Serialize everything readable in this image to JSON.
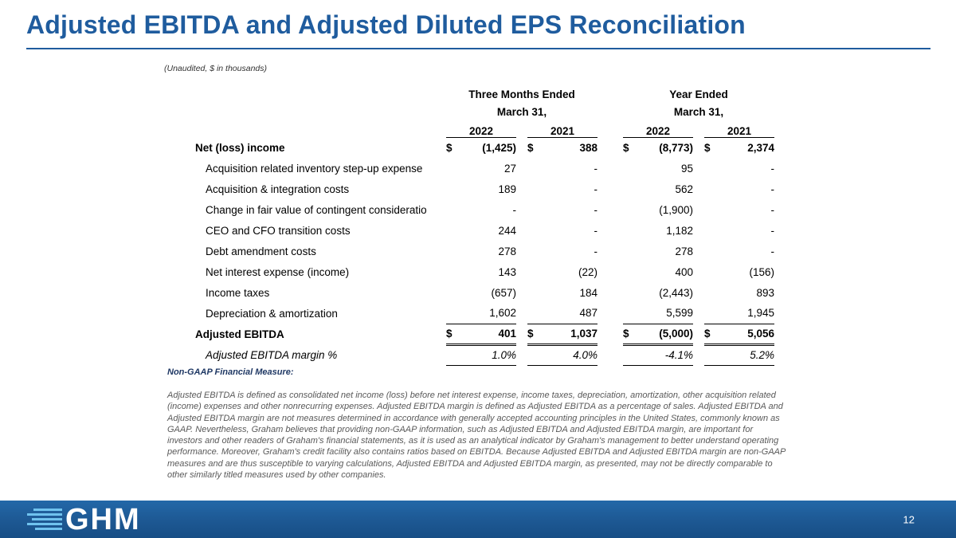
{
  "slide": {
    "title": "Adjusted EBITDA and Adjusted Diluted EPS Reconciliation",
    "subtitle": "(Unaudited, $ in thousands)",
    "page_number": "12",
    "logo_text": "GHM",
    "accent_color": "#1F5C9E",
    "footer_color": "#1D5893"
  },
  "table": {
    "currency": "$",
    "group_headers": [
      {
        "line1": "Three Months Ended",
        "line2": "March 31,"
      },
      {
        "line1": "Year Ended",
        "line2": "March 31,"
      }
    ],
    "year_headers": [
      "2022",
      "2021",
      "2022",
      "2021"
    ],
    "rows": [
      {
        "label": "Net (loss) income",
        "style": "lead",
        "has_currency": true,
        "values": [
          "(1,425)",
          "388",
          "(8,773)",
          "2,374"
        ]
      },
      {
        "label": "Acquisition related inventory step-up expense",
        "style": "item",
        "has_currency": false,
        "values": [
          "27",
          "-",
          "95",
          "-"
        ]
      },
      {
        "label": "Acquisition & integration costs",
        "style": "item",
        "has_currency": false,
        "values": [
          "189",
          "-",
          "562",
          "-"
        ]
      },
      {
        "label": "Change in fair value of contingent consideratio",
        "style": "item",
        "has_currency": false,
        "values": [
          "-",
          "-",
          "(1,900)",
          "-"
        ]
      },
      {
        "label": "CEO and CFO transition costs",
        "style": "item",
        "has_currency": false,
        "values": [
          "244",
          "-",
          "1,182",
          "-"
        ]
      },
      {
        "label": "Debt amendment costs",
        "style": "item",
        "has_currency": false,
        "values": [
          "278",
          "-",
          "278",
          "-"
        ]
      },
      {
        "label": "Net interest expense (income)",
        "style": "item",
        "has_currency": false,
        "values": [
          "143",
          "(22)",
          "400",
          "(156)"
        ]
      },
      {
        "label": "Income taxes",
        "style": "item",
        "has_currency": false,
        "values": [
          "(657)",
          "184",
          "(2,443)",
          "893"
        ]
      },
      {
        "label": "Depreciation & amortization",
        "style": "item",
        "has_currency": false,
        "values": [
          "1,602",
          "487",
          "5,599",
          "1,945"
        ]
      },
      {
        "label": "Adjusted EBITDA",
        "style": "total",
        "has_currency": true,
        "values": [
          "401",
          "1,037",
          "(5,000)",
          "5,056"
        ]
      },
      {
        "label": "Adjusted EBITDA margin %",
        "style": "margin",
        "has_currency": false,
        "values": [
          "1.0%",
          "4.0%",
          "-4.1%",
          "5.2%"
        ]
      }
    ]
  },
  "footnote": {
    "heading": "Non-GAAP Financial Measure:",
    "body": "Adjusted EBITDA is defined as consolidated net income (loss) before net interest expense, income taxes, depreciation, amortization, other acquisition related (income) expenses and other nonrecurring expenses.  Adjusted EBITDA margin is defined as Adjusted EBITDA as a percentage of sales. Adjusted EBITDA and Adjusted EBITDA margin are not measures determined in accordance with generally accepted accounting principles in the United States, commonly known as GAAP.  Nevertheless, Graham believes that providing non-GAAP information, such as Adjusted EBITDA and Adjusted EBITDA margin, are important for investors and other readers of Graham's financial statements, as it is used as an analytical indicator by Graham's management to better understand operating performance.  Moreover, Graham's credit facility also contains ratios based on EBITDA.  Because Adjusted EBITDA and Adjusted EBITDA margin are non-GAAP measures and are thus susceptible to varying calculations, Adjusted EBITDA and Adjusted EBITDA margin, as presented, may not be directly comparable to other similarly titled measures used by other companies."
  }
}
